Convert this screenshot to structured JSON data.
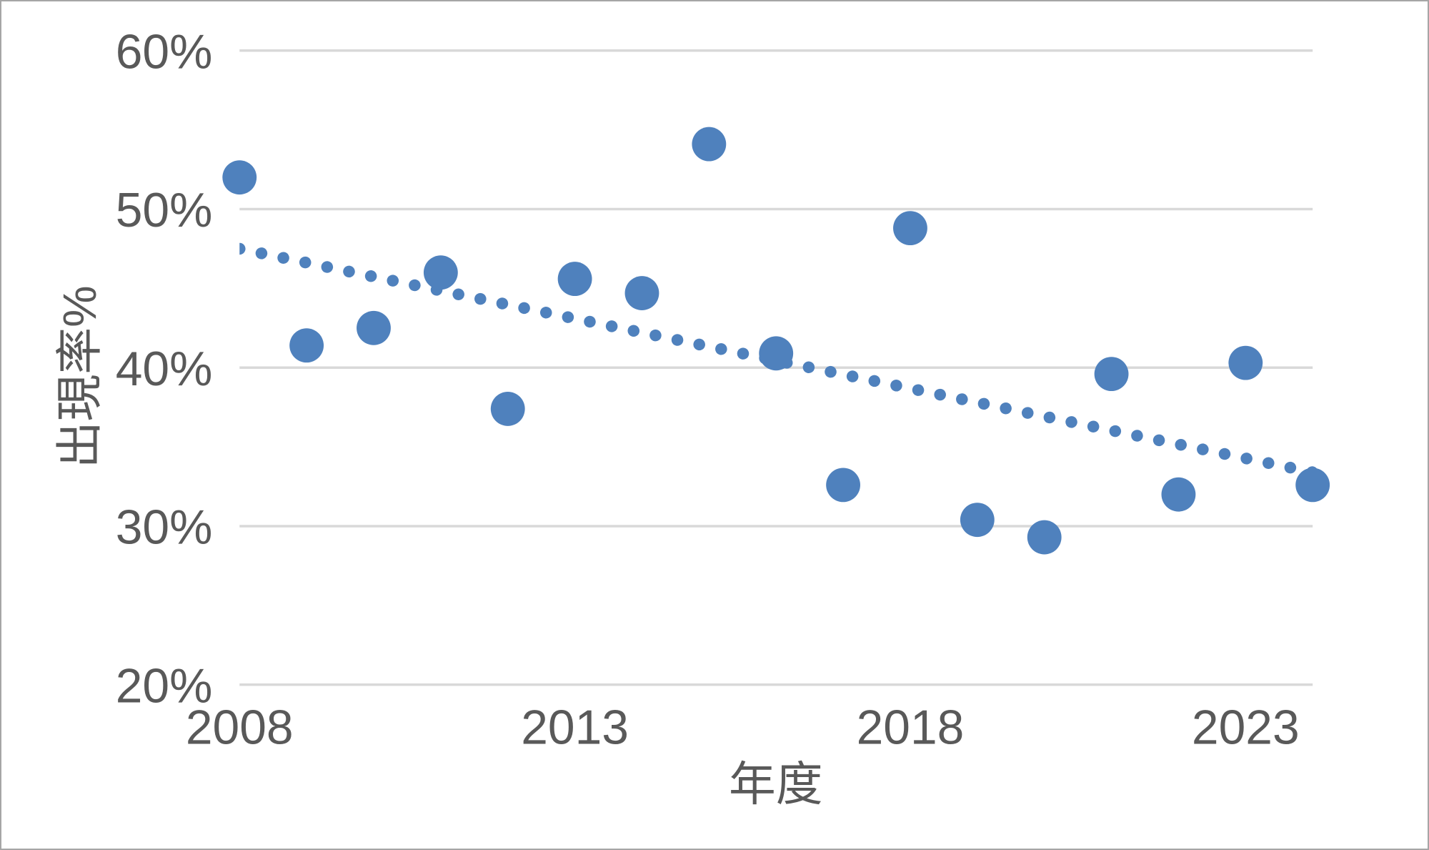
{
  "chart_data": {
    "type": "scatter",
    "title": "",
    "xlabel": "年度",
    "ylabel": "出現率%",
    "xlim": [
      2008,
      2024
    ],
    "ylim": [
      20,
      60
    ],
    "grid": "horizontal-only",
    "legend": "none",
    "xticks": {
      "values": [
        2008,
        2013,
        2018,
        2023
      ],
      "labels": [
        "2008",
        "2013",
        "2018",
        "2023"
      ]
    },
    "yticks": {
      "values": [
        20,
        30,
        40,
        50,
        60
      ],
      "labels": [
        "20%",
        "30%",
        "40%",
        "50%",
        "60%"
      ]
    },
    "series": [
      {
        "name": "出現率",
        "marker": "circle",
        "points": [
          {
            "year": 2008,
            "value": 52.0
          },
          {
            "year": 2009,
            "value": 41.4
          },
          {
            "year": 2010,
            "value": 42.5
          },
          {
            "year": 2011,
            "value": 46.0
          },
          {
            "year": 2012,
            "value": 37.4
          },
          {
            "year": 2013,
            "value": 45.6
          },
          {
            "year": 2014,
            "value": 44.7
          },
          {
            "year": 2015,
            "value": 54.1
          },
          {
            "year": 2016,
            "value": 40.9
          },
          {
            "year": 2017,
            "value": 32.6
          },
          {
            "year": 2018,
            "value": 48.8
          },
          {
            "year": 2019,
            "value": 30.4
          },
          {
            "year": 2020,
            "value": 29.3
          },
          {
            "year": 2021,
            "value": 39.6
          },
          {
            "year": 2022,
            "value": 32.0
          },
          {
            "year": 2023,
            "value": 40.3
          },
          {
            "year": 2024,
            "value": 32.6
          }
        ]
      }
    ],
    "trendline": {
      "type": "linear",
      "style": "dotted",
      "start": {
        "year": 2008,
        "value": 47.5
      },
      "end": {
        "year": 2024,
        "value": 33.4
      }
    },
    "colors": {
      "marker": "#4F81BD",
      "trend": "#4F81BD",
      "gridline": "#D9D9D9",
      "axis_text": "#595959",
      "border": "#A6A6A6",
      "background": "#FFFFFF"
    }
  }
}
